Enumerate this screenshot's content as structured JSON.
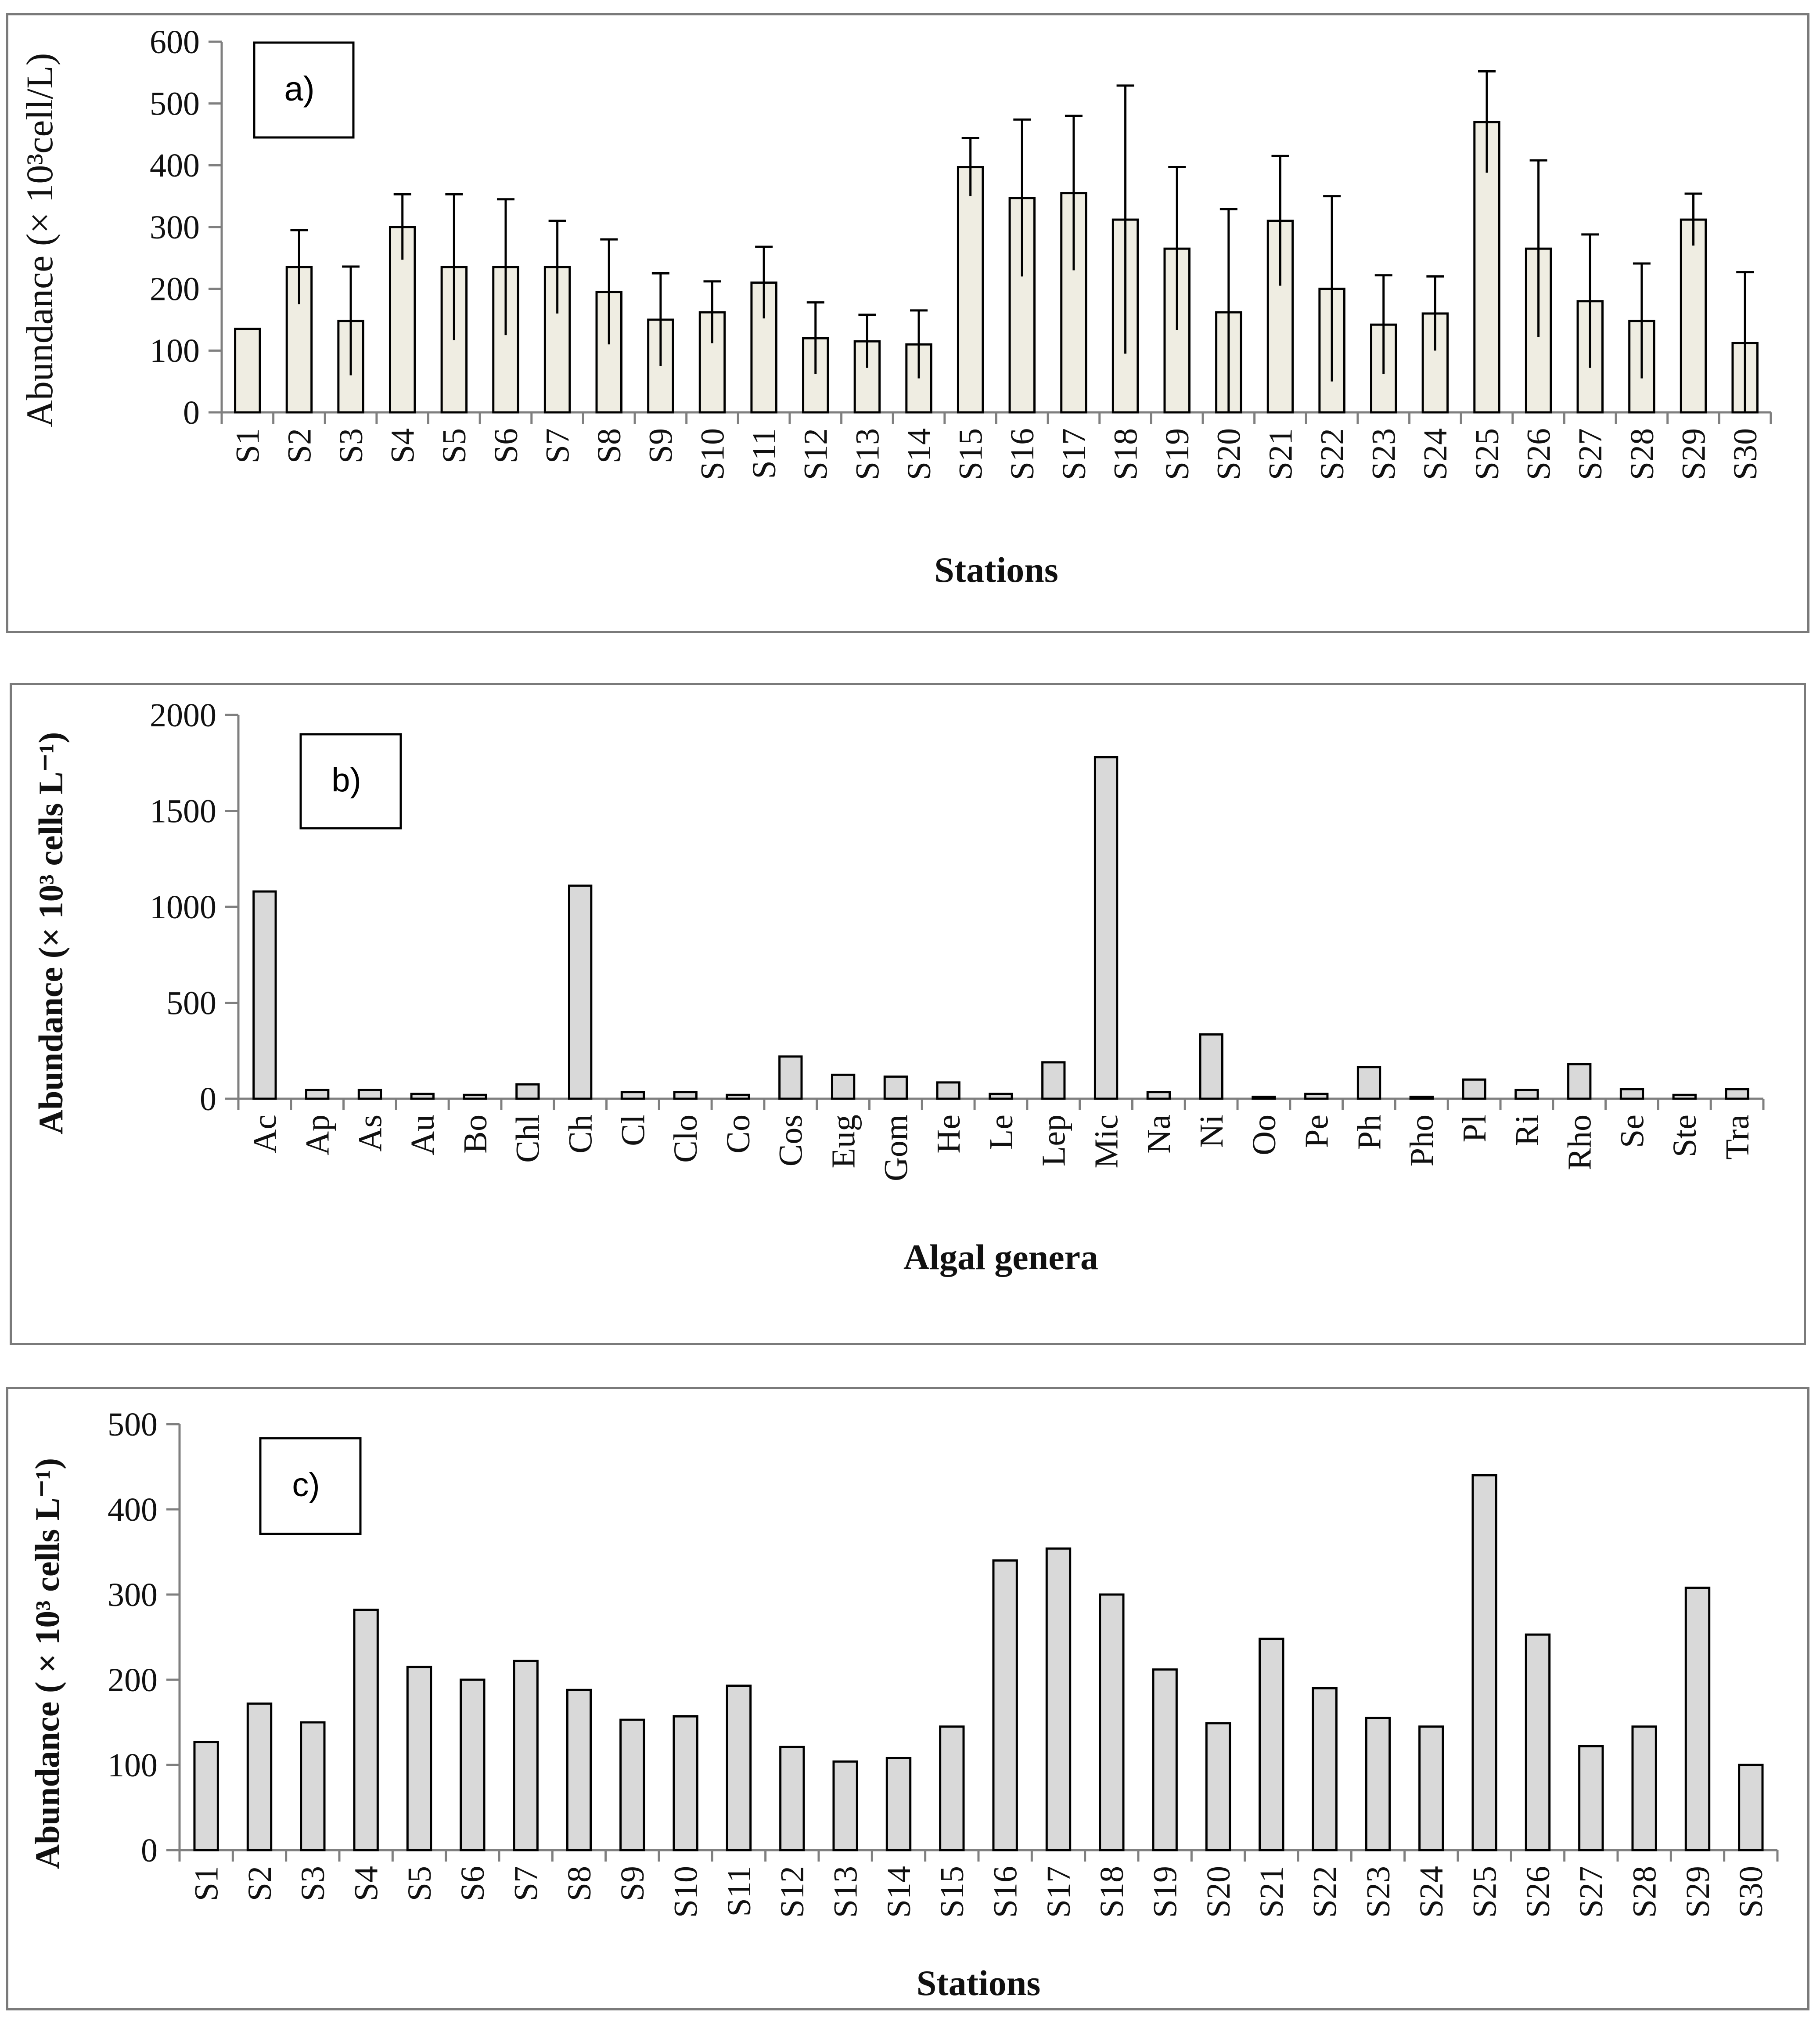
{
  "chart_data": [
    {
      "id": "a",
      "type": "bar",
      "panel_label": "a)",
      "xlabel": "Stations",
      "ylabel": "Abundance (× 10³cell/L)",
      "ylim": [
        0,
        600
      ],
      "yticks": [
        0,
        100,
        200,
        300,
        400,
        500,
        600
      ],
      "bar_color": "#efede2",
      "categories": [
        "S1",
        "S2",
        "S3",
        "S4",
        "S5",
        "S6",
        "S7",
        "S8",
        "S9",
        "S10",
        "S11",
        "S12",
        "S13",
        "S14",
        "S15",
        "S16",
        "S17",
        "S18",
        "S19",
        "S20",
        "S21",
        "S22",
        "S23",
        "S24",
        "S25",
        "S26",
        "S27",
        "S28",
        "S29",
        "S30"
      ],
      "values": [
        135,
        235,
        148,
        300,
        235,
        235,
        235,
        195,
        150,
        162,
        210,
        120,
        115,
        110,
        397,
        347,
        355,
        312,
        265,
        162,
        310,
        200,
        142,
        160,
        470,
        265,
        180,
        148,
        312,
        112
      ],
      "errors": [
        0,
        60,
        88,
        53,
        118,
        110,
        75,
        85,
        75,
        50,
        58,
        58,
        43,
        55,
        47,
        127,
        125,
        217,
        132,
        167,
        105,
        150,
        80,
        60,
        82,
        143,
        108,
        93,
        42,
        115
      ]
    },
    {
      "id": "b",
      "type": "bar",
      "panel_label": "b)",
      "xlabel": "Algal genera",
      "ylabel": "Abundance (× 10³ cells L⁻¹)",
      "ylim": [
        0,
        2000
      ],
      "yticks": [
        0,
        500,
        1000,
        1500,
        2000
      ],
      "bar_color": "#d9d9d9",
      "categories": [
        "Ac",
        "Ap",
        "As",
        "Au",
        "Bo",
        "Chl",
        "Ch",
        "Cl",
        "Clo",
        "Co",
        "Cos",
        "Eug",
        "Gom",
        "He",
        "Le",
        "Lep",
        "Mic",
        "Na",
        "Ni",
        "Oo",
        "Pe",
        "Ph",
        "Pho",
        "Pl",
        "Ri",
        "Rho",
        "Se",
        "Ste",
        "Tra"
      ],
      "values": [
        1080,
        45,
        45,
        25,
        20,
        75,
        1110,
        35,
        35,
        20,
        220,
        125,
        115,
        85,
        25,
        190,
        1780,
        35,
        335,
        10,
        25,
        165,
        10,
        100,
        45,
        180,
        50,
        20,
        50
      ]
    },
    {
      "id": "c",
      "type": "bar",
      "panel_label": "c)",
      "xlabel": "Stations",
      "ylabel": "Abundance ( × 10³ cells L⁻¹)",
      "ylim": [
        0,
        500
      ],
      "yticks": [
        0,
        100,
        200,
        300,
        400,
        500
      ],
      "bar_color": "#d9d9d9",
      "categories": [
        "S1",
        "S2",
        "S3",
        "S4",
        "S5",
        "S6",
        "S7",
        "S8",
        "S9",
        "S10",
        "S11",
        "S12",
        "S13",
        "S14",
        "S15",
        "S16",
        "S17",
        "S18",
        "S19",
        "S20",
        "S21",
        "S22",
        "S23",
        "S24",
        "S25",
        "S26",
        "S27",
        "S28",
        "S29",
        "S30"
      ],
      "values": [
        127,
        172,
        150,
        282,
        215,
        200,
        222,
        188,
        153,
        157,
        193,
        121,
        104,
        108,
        145,
        340,
        354,
        300,
        212,
        149,
        248,
        190,
        155,
        145,
        440,
        253,
        122,
        145,
        308,
        100
      ]
    }
  ]
}
